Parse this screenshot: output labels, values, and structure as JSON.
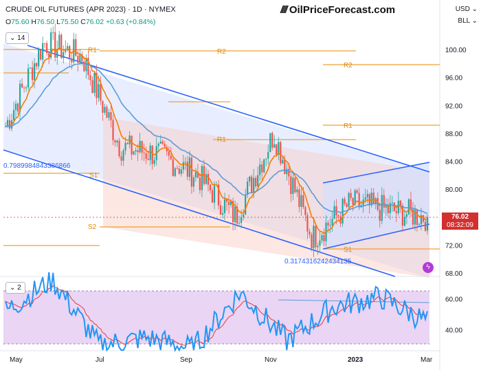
{
  "header": {
    "symbol_title": "CRUDE OIL FUTURES (APR 2023) · 1D · NYMEX",
    "ohlc": {
      "open_label": "O",
      "open": "75.60",
      "high_label": "H",
      "high": "76.50",
      "low_label": "L",
      "low": "75.50",
      "close_label": "C",
      "close": "76.02",
      "change": "+0.63 (+0.84%)"
    },
    "indicator_badge": "14",
    "rsi_badge": "2"
  },
  "brand": {
    "logo_text": "OilPriceForecast.com"
  },
  "scale_controls": {
    "currency": "USD",
    "unit": "BLL"
  },
  "last_price": {
    "value": "76.02",
    "countdown": "08:32:09"
  },
  "colors": {
    "channel": "#2962ff",
    "pivot": "#f0a030",
    "ema_orange": "#f57c00",
    "ema_blue": "#5b9bd5",
    "candle_up": "#26a69a",
    "candle_down": "#ef5350",
    "rsi_line": "#2196f3",
    "rsi_signal": "#e53935",
    "rsi_band": "#e1bee7"
  },
  "annotations": {
    "fib_left": "0.7989984843386866",
    "fib_right": "0.3174316242434135",
    "pivot_labels": [
      "R1",
      "R2",
      "R2",
      "R1",
      "R1",
      "S1",
      "S1",
      "S2"
    ]
  },
  "chart_data": [
    {
      "type": "candlestick",
      "title": "CRUDE OIL FUTURES (APR 2023)",
      "x_tick_labels": [
        "May",
        "Jul",
        "Sep",
        "Nov",
        "2023",
        "Mar"
      ],
      "y_tick_labels": [
        "100.00",
        "96.00",
        "92.00",
        "88.00",
        "84.00",
        "80.00",
        "76.00",
        "72.00",
        "68.00"
      ],
      "ylim": [
        68,
        103
      ],
      "approx_close_path": [
        {
          "x": "May",
          "y": 89
        },
        {
          "x": "Jun",
          "y": 101
        },
        {
          "x": "mid-Jun",
          "y": 99
        },
        {
          "x": "Jul",
          "y": 86
        },
        {
          "x": "Aug",
          "y": 85
        },
        {
          "x": "Sep",
          "y": 82
        },
        {
          "x": "late-Sep",
          "y": 76
        },
        {
          "x": "Nov",
          "y": 88
        },
        {
          "x": "Dec",
          "y": 73
        },
        {
          "x": "2023",
          "y": 78
        },
        {
          "x": "Feb",
          "y": 77
        },
        {
          "x": "late-Feb",
          "y": 76.02
        }
      ],
      "last_close": 76.02
    },
    {
      "type": "line",
      "title": "RSI",
      "y_tick_labels": [
        "60.00",
        "40.00"
      ],
      "ylim": [
        27,
        78
      ],
      "approx_values": [
        {
          "x": "May",
          "y": 52
        },
        {
          "x": "Jun",
          "y": 72
        },
        {
          "x": "Jul",
          "y": 30
        },
        {
          "x": "Sep",
          "y": 35
        },
        {
          "x": "late-Sep",
          "y": 28
        },
        {
          "x": "Nov",
          "y": 64
        },
        {
          "x": "Dec",
          "y": 33
        },
        {
          "x": "2023",
          "y": 55
        },
        {
          "x": "Feb",
          "y": 61
        },
        {
          "x": "late-Feb",
          "y": 45
        }
      ]
    }
  ]
}
